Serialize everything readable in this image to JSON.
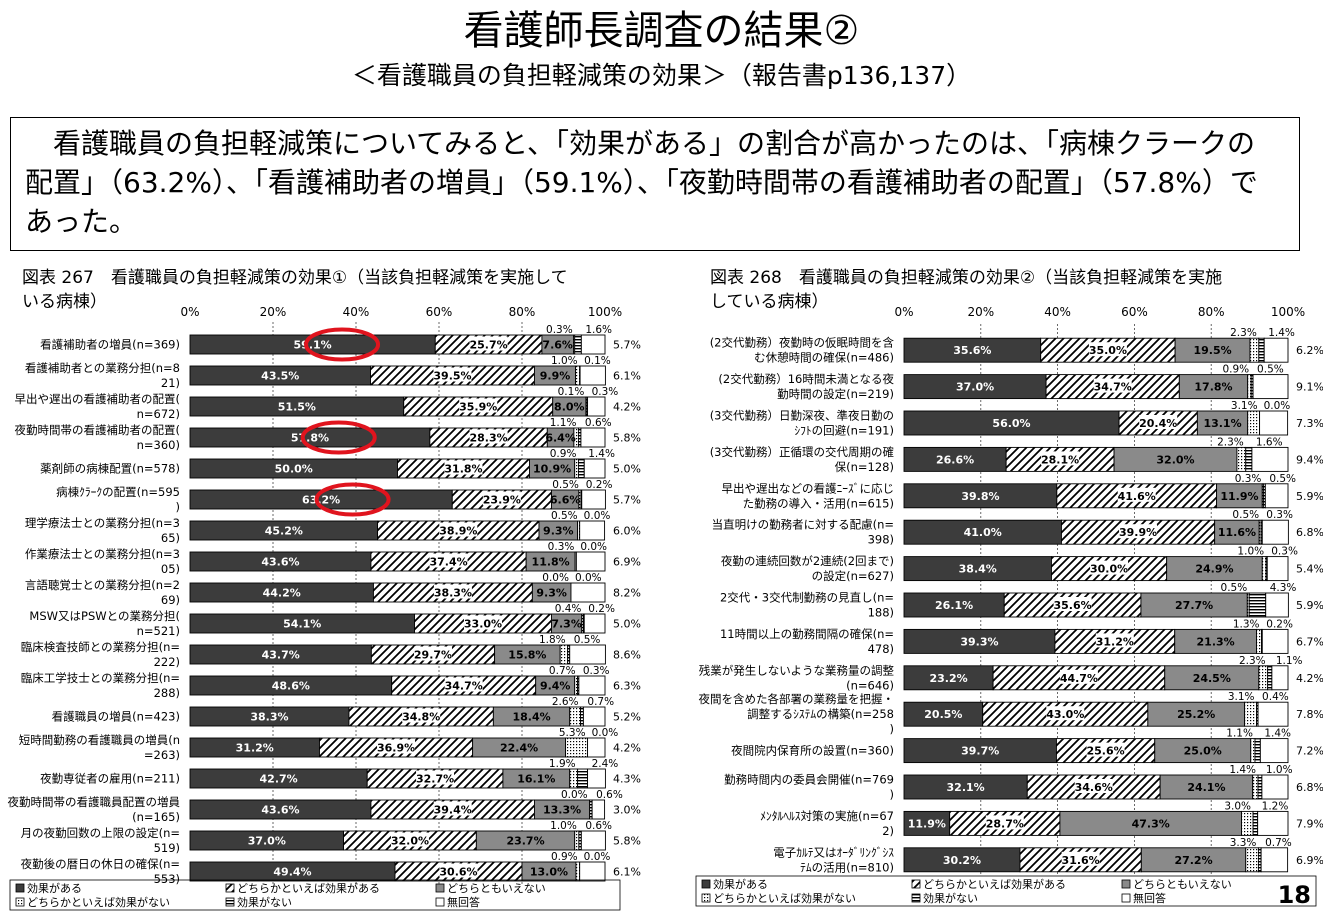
{
  "title": "看護師長調査の結果②",
  "subtitle": "＜看護職員の負担軽減策の効果＞（報告書p136,137）",
  "summary": "看護職員の負担軽減策についてみると、「効果がある」の割合が高かったのは、「病棟クラークの配置」（63.2%）、「看護補助者の増員」（59.1%）、「夜勤時間帯の看護補助者の配置」（57.8%）であった。",
  "page_number": "18",
  "colors": {
    "effective": "#3c3c3c",
    "neutral": "#8a8a8a",
    "circle": "#e0141e"
  },
  "legend": {
    "effective": "効果がある",
    "somewhat_effective": "どちらかといえば効果がある",
    "neutral": "どちらともいえない",
    "somewhat_not": "どちらかといえば効果がない",
    "not_effective": "効果がない",
    "no_answer": "無回答"
  },
  "left_figure_title_line1": "図表 267　看護職員の負担軽減策の効果①（当該負担軽減策を実施して",
  "left_figure_title_line2": "いる病棟）",
  "right_figure_title_line1": "図表 268　看護職員の負担軽減策の効果②（当該負担軽減策を実施",
  "right_figure_title_line2": "している病棟）",
  "chart_data": [
    {
      "type": "bar",
      "orientation": "horizontal-stacked-100",
      "title": "図表 267　看護職員の負担軽減策の効果①（当該負担軽減策を実施している病棟）",
      "x_ticks": [
        "0%",
        "20%",
        "40%",
        "60%",
        "80%",
        "100%"
      ],
      "series_names": [
        "効果がある",
        "どちらかといえば効果がある",
        "どちらともいえない",
        "どちらかといえば効果がない",
        "効果がない",
        "無回答"
      ],
      "highlighted": [
        "看護補助者の増員(n=369)",
        "夜勤時間帯の看護補助者の配置(n=360)",
        "病棟ｸﾗｰｸの配置(n=595)"
      ],
      "categories": [
        {
          "label": "看護補助者の増員(n=369)",
          "values": [
            59.1,
            25.7,
            7.6,
            0.3,
            1.6,
            5.7
          ]
        },
        {
          "label": "看護補助者との業務分担(n=821)",
          "values": [
            43.5,
            39.5,
            9.9,
            1.0,
            0.1,
            6.1
          ]
        },
        {
          "label": "早出や遅出の看護補助者の配置(n=672)",
          "values": [
            51.5,
            35.9,
            8.0,
            0.1,
            0.3,
            4.2
          ]
        },
        {
          "label": "夜勤時間帯の看護補助者の配置(n=360)",
          "values": [
            57.8,
            28.3,
            6.4,
            1.1,
            0.6,
            5.8
          ]
        },
        {
          "label": "薬剤師の病棟配置(n=578)",
          "values": [
            50.0,
            31.8,
            10.9,
            0.9,
            1.4,
            5.0
          ]
        },
        {
          "label": "病棟ｸﾗｰｸの配置(n=595)",
          "values": [
            63.2,
            23.9,
            6.6,
            0.5,
            0.2,
            5.7
          ]
        },
        {
          "label": "理学療法士との業務分担(n=365)",
          "values": [
            45.2,
            38.9,
            9.3,
            0.5,
            0.0,
            6.0
          ]
        },
        {
          "label": "作業療法士との業務分担(n=305)",
          "values": [
            43.6,
            37.4,
            11.8,
            0.3,
            0.0,
            6.9
          ]
        },
        {
          "label": "言語聴覚士との業務分担(n=269)",
          "values": [
            44.2,
            38.3,
            9.3,
            0.0,
            0.0,
            8.2
          ]
        },
        {
          "label": "MSW又はPSWとの業務分担(n=521)",
          "values": [
            54.1,
            33.0,
            7.3,
            0.4,
            0.2,
            5.0
          ]
        },
        {
          "label": "臨床検査技師との業務分担(n=222)",
          "values": [
            43.7,
            29.7,
            15.8,
            1.8,
            0.5,
            8.6
          ]
        },
        {
          "label": "臨床工学技士との業務分担(n=288)",
          "values": [
            48.6,
            34.7,
            9.4,
            0.7,
            0.3,
            6.3
          ]
        },
        {
          "label": "看護職員の増員(n=423)",
          "values": [
            38.3,
            34.8,
            18.4,
            2.6,
            0.7,
            5.2
          ]
        },
        {
          "label": "短時間勤務の看護職員の増員(n=263)",
          "values": [
            31.2,
            36.9,
            22.4,
            5.3,
            0.0,
            4.2
          ]
        },
        {
          "label": "夜勤専従者の雇用(n=211)",
          "values": [
            42.7,
            32.7,
            16.1,
            1.9,
            2.4,
            4.3
          ]
        },
        {
          "label": "夜勤時間帯の看護職員配置の増員(n=165)",
          "values": [
            43.6,
            39.4,
            13.3,
            0.0,
            0.6,
            3.0
          ]
        },
        {
          "label": "月の夜勤回数の上限の設定(n=519)",
          "values": [
            37.0,
            32.0,
            23.7,
            1.0,
            0.6,
            5.8
          ]
        },
        {
          "label": "夜勤後の暦日の休日の確保(n=553)",
          "values": [
            49.4,
            30.6,
            13.0,
            0.9,
            0.0,
            6.1
          ]
        }
      ]
    },
    {
      "type": "bar",
      "orientation": "horizontal-stacked-100",
      "title": "図表 268　看護職員の負担軽減策の効果②（当該負担軽減策を実施している病棟）",
      "x_ticks": [
        "0%",
        "20%",
        "40%",
        "60%",
        "80%",
        "100%"
      ],
      "series_names": [
        "効果がある",
        "どちらかといえば効果がある",
        "どちらともいえない",
        "どちらかといえば効果がない",
        "効果がない",
        "無回答"
      ],
      "categories": [
        {
          "label": "(2交代勤務）夜勤時の仮眠時間を含む休憩時間の確保(n=486)",
          "values": [
            35.6,
            35.0,
            19.5,
            2.3,
            1.4,
            6.2
          ]
        },
        {
          "label": "(2交代勤務）16時間未満となる夜勤時間の設定(n=219)",
          "values": [
            37.0,
            34.7,
            17.8,
            0.9,
            0.5,
            9.1
          ]
        },
        {
          "label": "(3交代勤務）日勤深夜、準夜日勤のｼﾌﾄの回避(n=191)",
          "values": [
            56.0,
            20.4,
            13.1,
            3.1,
            0.0,
            7.3
          ]
        },
        {
          "label": "(3交代勤務）正循環の交代周期の確保(n=128)",
          "values": [
            26.6,
            28.1,
            32.0,
            2.3,
            1.6,
            9.4
          ]
        },
        {
          "label": "早出や遅出などの看護ﾆｰｽﾞに応じた勤務の導入・活用(n=615)",
          "values": [
            39.8,
            41.6,
            11.9,
            0.3,
            0.5,
            5.9
          ]
        },
        {
          "label": "当直明けの勤務者に対する配慮(n=398)",
          "values": [
            41.0,
            39.9,
            11.6,
            0.5,
            0.3,
            6.8
          ]
        },
        {
          "label": "夜勤の連続回数が2連続(2回まで)の設定(n=627)",
          "values": [
            38.4,
            30.0,
            24.9,
            1.0,
            0.3,
            5.4
          ]
        },
        {
          "label": "2交代・3交代制勤務の見直し(n=188)",
          "values": [
            26.1,
            35.6,
            27.7,
            0.5,
            4.3,
            5.9
          ]
        },
        {
          "label": "11時間以上の勤務間隔の確保(n=478)",
          "values": [
            39.3,
            31.2,
            21.3,
            1.3,
            0.2,
            6.7
          ]
        },
        {
          "label": "残業が発生しないような業務量の調整(n=646)",
          "values": [
            23.2,
            44.7,
            24.5,
            2.3,
            1.1,
            4.2
          ]
        },
        {
          "label": "夜間を含めた各部署の業務量を把握・調整するｼｽﾃﾑの構築(n=258)",
          "values": [
            20.5,
            43.0,
            25.2,
            3.1,
            0.4,
            7.8
          ]
        },
        {
          "label": "夜間院内保育所の設置(n=360)",
          "values": [
            39.7,
            25.6,
            25.0,
            1.1,
            1.4,
            7.2
          ]
        },
        {
          "label": "勤務時間内の委員会開催(n=769)",
          "values": [
            32.1,
            34.6,
            24.1,
            1.4,
            1.0,
            6.8
          ]
        },
        {
          "label": "ﾒﾝﾀﾙﾍﾙｽ対策の実施(n=672)",
          "values": [
            11.9,
            28.7,
            47.3,
            3.0,
            1.2,
            7.9
          ]
        },
        {
          "label": "電子ｶﾙﾃ又はｵｰﾀﾞﾘﾝｸﾞｼｽﾃﾑの活用(n=810)",
          "values": [
            30.2,
            31.6,
            27.2,
            3.3,
            0.7,
            6.9
          ]
        }
      ]
    }
  ]
}
